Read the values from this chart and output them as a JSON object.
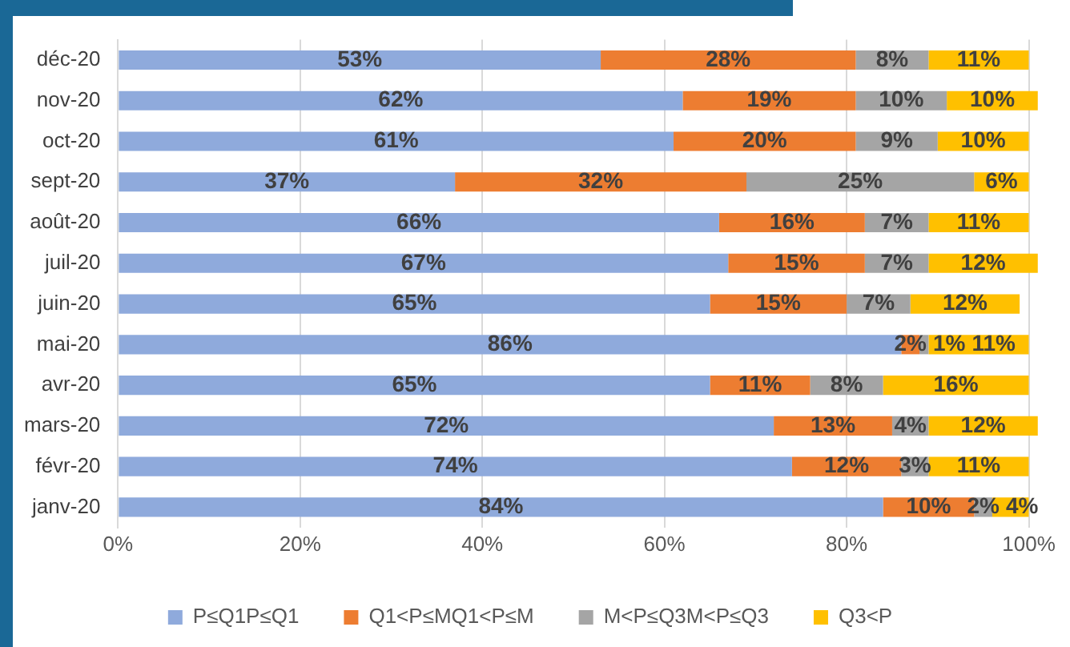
{
  "chart_data": {
    "type": "bar",
    "orientation": "horizontal",
    "stacked": true,
    "categories": [
      "déc-20",
      "nov-20",
      "oct-20",
      "sept-20",
      "août-20",
      "juil-20",
      "juin-20",
      "mai-20",
      "avr-20",
      "mars-20",
      "févr-20",
      "janv-20"
    ],
    "series": [
      {
        "name": "P≤Q1P≤Q1",
        "color": "#8faadc",
        "values": [
          53,
          62,
          61,
          37,
          66,
          67,
          65,
          86,
          65,
          72,
          74,
          84
        ],
        "value_labels": [
          "53%",
          "62%",
          "61%",
          "37%",
          "66%",
          "67%",
          "65%",
          "86%",
          "65%",
          "72%",
          "74%",
          "84%"
        ]
      },
      {
        "name": "Q1<P≤MQ1<P≤M",
        "color": "#ed7d31",
        "values": [
          28,
          19,
          20,
          32,
          16,
          15,
          15,
          2,
          11,
          13,
          12,
          10
        ],
        "value_labels": [
          "28%",
          "19%",
          "20%",
          "32%",
          "16%",
          "15%",
          "15%",
          "2%",
          "11%",
          "13%",
          "12%",
          "10%"
        ]
      },
      {
        "name": "M<P≤Q3M<P≤Q3",
        "color": "#a5a5a5",
        "values": [
          8,
          10,
          9,
          25,
          7,
          7,
          7,
          1,
          8,
          4,
          3,
          2
        ],
        "value_labels": [
          "8%",
          "10%",
          "9%",
          "25%",
          "7%",
          "7%",
          "7%",
          "1%",
          "8%",
          "4%",
          "3%",
          "2%"
        ]
      },
      {
        "name": "Q3<P",
        "color": "#ffc000",
        "values": [
          11,
          10,
          10,
          6,
          11,
          12,
          12,
          11,
          16,
          12,
          11,
          4
        ],
        "value_labels": [
          "11%",
          "10%",
          "10%",
          "6%",
          "11%",
          "12%",
          "12%",
          "11%",
          "16%",
          "12%",
          "11%",
          "4%"
        ]
      }
    ],
    "xlim": [
      0,
      101
    ],
    "xticks": [
      {
        "value": 0,
        "label": "0%"
      },
      {
        "value": 20,
        "label": "20%"
      },
      {
        "value": 40,
        "label": "40%"
      },
      {
        "value": 60,
        "label": "60%"
      },
      {
        "value": 80,
        "label": "80%"
      },
      {
        "value": 100,
        "label": "100%"
      }
    ],
    "grid": "x",
    "legend": "bottom"
  }
}
